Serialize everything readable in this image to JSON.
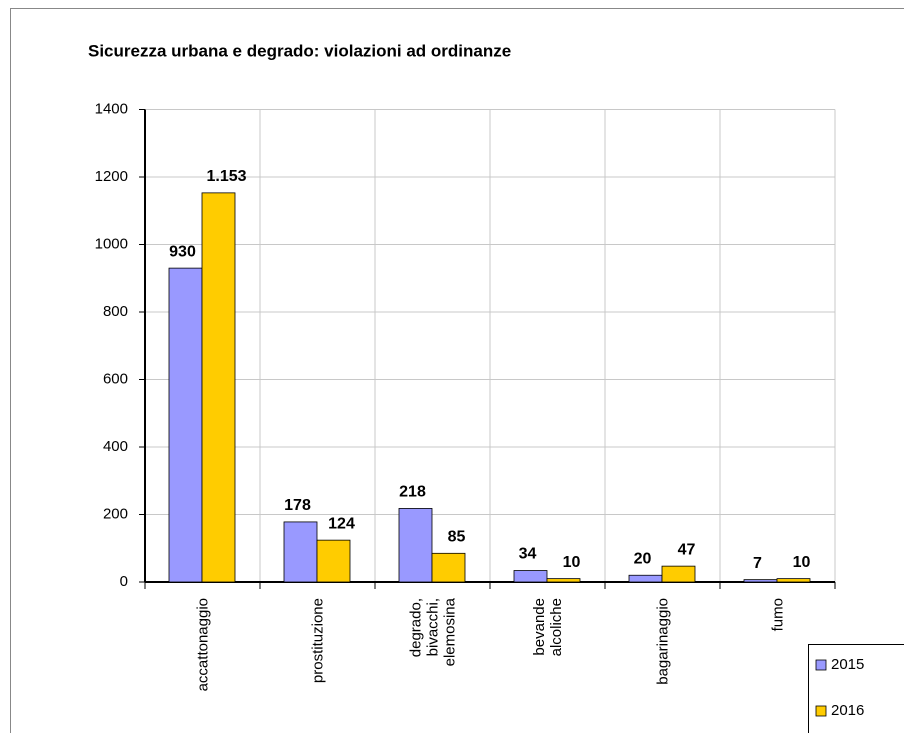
{
  "chart_data": {
    "type": "bar",
    "title": "Sicurezza urbana e degrado: violazioni ad ordinanze",
    "categories": [
      "accattonaggio",
      "prostituzione",
      "degrado, bivacchi, elemosina",
      "bevande alcoliche",
      "bagarinaggio",
      "fumo"
    ],
    "series": [
      {
        "name": "2015",
        "color": "#9999ff",
        "values": [
          930,
          178,
          218,
          34,
          20,
          7
        ],
        "value_labels": [
          "930",
          "178",
          "218",
          "34",
          "20",
          "7"
        ]
      },
      {
        "name": "2016",
        "color": "#ffcc00",
        "values": [
          1153,
          124,
          85,
          10,
          47,
          10
        ],
        "value_labels": [
          "1.153",
          "124",
          "85",
          "10",
          "47",
          "10"
        ]
      }
    ],
    "ylim": [
      0,
      1400
    ],
    "yticks": [
      0,
      200,
      400,
      600,
      800,
      1000,
      1200,
      1400
    ],
    "grid": true
  }
}
